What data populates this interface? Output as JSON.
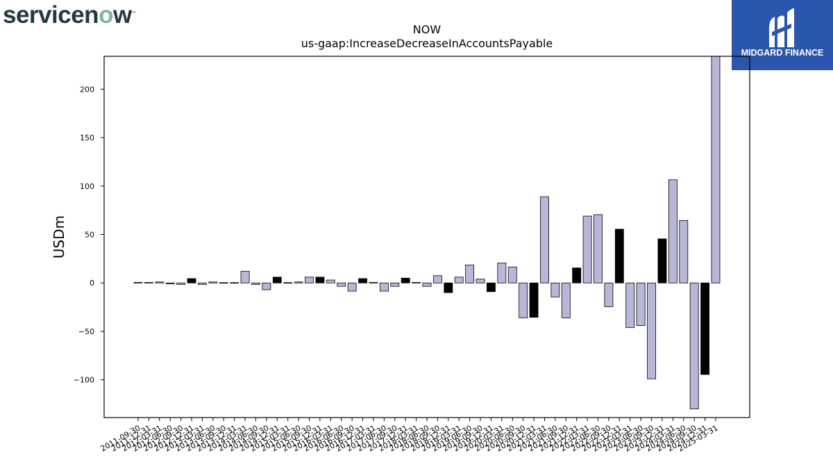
{
  "logos": {
    "left": {
      "text_a": "servicen",
      "text_o": "o",
      "text_b": "w",
      "text_tm": "™"
    },
    "right": {
      "text": "MIDGARD FINANCE",
      "icon": "midgard-mark-icon"
    }
  },
  "colors": {
    "bar": "#b9b7d7",
    "bar_highlight": "#000000",
    "edge": "#000000",
    "axis": "#000000"
  },
  "chart_data": {
    "type": "bar",
    "title": "NOW",
    "subtitle": "us-gaap:IncreaseDecreaseInAccountsPayable",
    "xlabel": "",
    "ylabel": "USDm",
    "ylim": [
      -139,
      234
    ],
    "yticks": [
      -100,
      -50,
      0,
      50,
      100,
      150,
      200
    ],
    "ytick_labels": [
      "−100",
      "−50",
      "0",
      "50",
      "100",
      "150",
      "200"
    ],
    "grid": false,
    "categories": [
      "2011-09-30",
      "2011-12-31",
      "2012-03-31",
      "2012-06-30",
      "2012-09-30",
      "2012-12-31",
      "2013-03-31",
      "2013-06-30",
      "2013-09-30",
      "2013-12-31",
      "2014-03-31",
      "2014-06-30",
      "2014-09-30",
      "2014-12-31",
      "2015-03-31",
      "2015-06-30",
      "2015-09-30",
      "2015-12-31",
      "2016-03-31",
      "2016-06-30",
      "2016-09-30",
      "2016-12-31",
      "2017-03-31",
      "2017-06-30",
      "2017-09-30",
      "2017-12-31",
      "2018-03-31",
      "2018-06-30",
      "2018-09-30",
      "2018-12-31",
      "2019-03-31",
      "2019-06-30",
      "2019-09-30",
      "2019-12-31",
      "2020-03-31",
      "2020-06-30",
      "2020-09-30",
      "2020-12-31",
      "2021-03-31",
      "2021-06-30",
      "2021-09-30",
      "2021-12-31",
      "2022-03-31",
      "2022-06-30",
      "2022-09-30",
      "2022-12-31",
      "2023-03-31",
      "2023-06-30",
      "2023-09-30",
      "2023-12-31",
      "2024-03-31",
      "2024-06-30",
      "2024-09-30",
      "2024-12-31",
      "2025-03-31"
    ],
    "values": [
      0.5,
      0.5,
      1,
      -1,
      -1.5,
      4.5,
      -1.5,
      1,
      0.3,
      0.3,
      12,
      -1.5,
      -7,
      6,
      0.3,
      1,
      6,
      6,
      3,
      -3.5,
      -8.5,
      4.5,
      0.5,
      -8.5,
      -3.5,
      5,
      0.5,
      -3.5,
      7.5,
      -10,
      6,
      18.5,
      4,
      -9,
      20.5,
      16.5,
      -36,
      -35.5,
      89,
      -14.5,
      -36,
      15.5,
      69,
      70.5,
      -24.5,
      55.5,
      -46,
      -44,
      -99,
      45.5,
      106.5,
      64.5,
      -130,
      -94.5,
      234
    ],
    "highlighted": [
      false,
      false,
      false,
      false,
      false,
      true,
      false,
      false,
      false,
      false,
      false,
      false,
      false,
      true,
      false,
      false,
      false,
      true,
      false,
      false,
      false,
      true,
      false,
      false,
      false,
      true,
      false,
      false,
      false,
      true,
      false,
      false,
      false,
      true,
      false,
      false,
      false,
      true,
      false,
      false,
      false,
      true,
      false,
      false,
      false,
      true,
      false,
      false,
      false,
      true,
      false,
      false,
      false,
      true,
      false
    ]
  }
}
